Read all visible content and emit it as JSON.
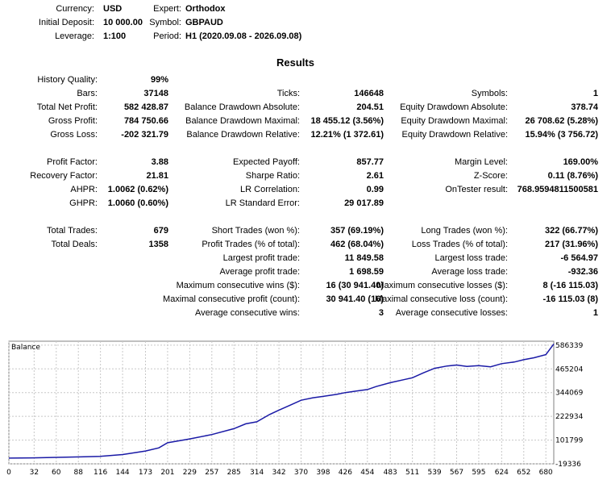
{
  "header": {
    "currency": {
      "label": "Currency:",
      "value": "USD"
    },
    "initial_deposit": {
      "label": "Initial Deposit:",
      "value": "10 000.00"
    },
    "leverage": {
      "label": "Leverage:",
      "value": "1:100"
    },
    "expert": {
      "label": "Expert:",
      "value": "Orthodox"
    },
    "symbol": {
      "label": "Symbol:",
      "value": "GBPAUD"
    },
    "period": {
      "label": "Period:",
      "value": "H1 (2020.09.08 - 2026.09.08)"
    }
  },
  "results_title": "Results",
  "stats": {
    "history_quality": {
      "label": "History Quality:",
      "value": "99%"
    },
    "bars": {
      "label": "Bars:",
      "value": "37148"
    },
    "ticks": {
      "label": "Ticks:",
      "value": "146648"
    },
    "symbols": {
      "label": "Symbols:",
      "value": "1"
    },
    "total_net_profit": {
      "label": "Total Net Profit:",
      "value": "582 428.87"
    },
    "balance_dd_abs": {
      "label": "Balance Drawdown Absolute:",
      "value": "204.51"
    },
    "equity_dd_abs": {
      "label": "Equity Drawdown Absolute:",
      "value": "378.74"
    },
    "gross_profit": {
      "label": "Gross Profit:",
      "value": "784 750.66"
    },
    "balance_dd_max": {
      "label": "Balance Drawdown Maximal:",
      "value": "18 455.12 (3.56%)"
    },
    "equity_dd_max": {
      "label": "Equity Drawdown Maximal:",
      "value": "26 708.62 (5.28%)"
    },
    "gross_loss": {
      "label": "Gross Loss:",
      "value": "-202 321.79"
    },
    "balance_dd_rel": {
      "label": "Balance Drawdown Relative:",
      "value": "12.21% (1 372.61)"
    },
    "equity_dd_rel": {
      "label": "Equity Drawdown Relative:",
      "value": "15.94% (3 756.72)"
    },
    "profit_factor": {
      "label": "Profit Factor:",
      "value": "3.88"
    },
    "expected_payoff": {
      "label": "Expected Payoff:",
      "value": "857.77"
    },
    "margin_level": {
      "label": "Margin Level:",
      "value": "169.00%"
    },
    "recovery_factor": {
      "label": "Recovery Factor:",
      "value": "21.81"
    },
    "sharpe_ratio": {
      "label": "Sharpe Ratio:",
      "value": "2.61"
    },
    "z_score": {
      "label": "Z-Score:",
      "value": "0.11 (8.76%)"
    },
    "ahpr": {
      "label": "AHPR:",
      "value": "1.0062 (0.62%)"
    },
    "lr_correlation": {
      "label": "LR Correlation:",
      "value": "0.99"
    },
    "ontester_result": {
      "label": "OnTester result:",
      "value": "768.9594811500581"
    },
    "ghpr": {
      "label": "GHPR:",
      "value": "1.0060 (0.60%)"
    },
    "lr_standard_error": {
      "label": "LR Standard Error:",
      "value": "29 017.89"
    },
    "total_trades": {
      "label": "Total Trades:",
      "value": "679"
    },
    "short_trades": {
      "label": "Short Trades (won %):",
      "value": "357 (69.19%)"
    },
    "long_trades": {
      "label": "Long Trades (won %):",
      "value": "322 (66.77%)"
    },
    "total_deals": {
      "label": "Total Deals:",
      "value": "1358"
    },
    "profit_trades": {
      "label": "Profit Trades (% of total):",
      "value": "462 (68.04%)"
    },
    "loss_trades": {
      "label": "Loss Trades (% of total):",
      "value": "217 (31.96%)"
    },
    "largest_profit": {
      "label": "Largest profit trade:",
      "value": "11 849.58"
    },
    "largest_loss": {
      "label": "Largest loss trade:",
      "value": "-6 564.97"
    },
    "avg_profit": {
      "label": "Average profit trade:",
      "value": "1 698.59"
    },
    "avg_loss": {
      "label": "Average loss trade:",
      "value": "-932.36"
    },
    "max_consec_wins": {
      "label": "Maximum consecutive wins ($):",
      "value": "16 (30 941.40)"
    },
    "max_consec_losses": {
      "label": "Maximum consecutive losses ($):",
      "value": "8 (-16 115.03)"
    },
    "maximal_consec_profit": {
      "label": "Maximal consecutive profit (count):",
      "value": "30 941.40 (16)"
    },
    "maximal_consec_loss": {
      "label": "Maximal consecutive loss (count):",
      "value": "-16 115.03 (8)"
    },
    "avg_consec_wins": {
      "label": "Average consecutive wins:",
      "value": "3"
    },
    "avg_consec_losses": {
      "label": "Average consecutive losses:",
      "value": "1"
    }
  },
  "chart_data": {
    "type": "line",
    "title": "Balance",
    "xlabel": "",
    "ylabel": "",
    "grid": true,
    "colors": {
      "line": "#1a1aa6",
      "grid": "#c8c8c8",
      "border": "#808080"
    },
    "xlim": [
      0,
      690
    ],
    "ylim": [
      -19336,
      606400
    ],
    "x_ticks": [
      "0",
      "32",
      "60",
      "88",
      "116",
      "144",
      "173",
      "201",
      "229",
      "257",
      "285",
      "314",
      "342",
      "370",
      "398",
      "426",
      "454",
      "483",
      "511",
      "539",
      "567",
      "595",
      "624",
      "652",
      "680"
    ],
    "y_ticks": [
      "586339",
      "465204",
      "344069",
      "222934",
      "101799",
      "-19336"
    ],
    "series": [
      {
        "name": "Balance",
        "points": [
          [
            0,
            10000
          ],
          [
            30,
            11000
          ],
          [
            60,
            13500
          ],
          [
            90,
            16000
          ],
          [
            116,
            19000
          ],
          [
            144,
            28000
          ],
          [
            173,
            46000
          ],
          [
            190,
            62000
          ],
          [
            201,
            88000
          ],
          [
            229,
            108000
          ],
          [
            257,
            130000
          ],
          [
            285,
            160000
          ],
          [
            300,
            185000
          ],
          [
            314,
            195000
          ],
          [
            330,
            232000
          ],
          [
            342,
            255000
          ],
          [
            355,
            278000
          ],
          [
            370,
            305000
          ],
          [
            385,
            318000
          ],
          [
            398,
            325000
          ],
          [
            415,
            335000
          ],
          [
            426,
            344000
          ],
          [
            440,
            352000
          ],
          [
            454,
            360000
          ],
          [
            465,
            375000
          ],
          [
            483,
            395000
          ],
          [
            500,
            410000
          ],
          [
            511,
            420000
          ],
          [
            525,
            445000
          ],
          [
            539,
            468000
          ],
          [
            555,
            480000
          ],
          [
            567,
            485000
          ],
          [
            580,
            478000
          ],
          [
            595,
            482000
          ],
          [
            610,
            476000
          ],
          [
            624,
            492000
          ],
          [
            640,
            500000
          ],
          [
            652,
            512000
          ],
          [
            665,
            522000
          ],
          [
            680,
            538000
          ],
          [
            690,
            592429
          ]
        ]
      }
    ]
  }
}
